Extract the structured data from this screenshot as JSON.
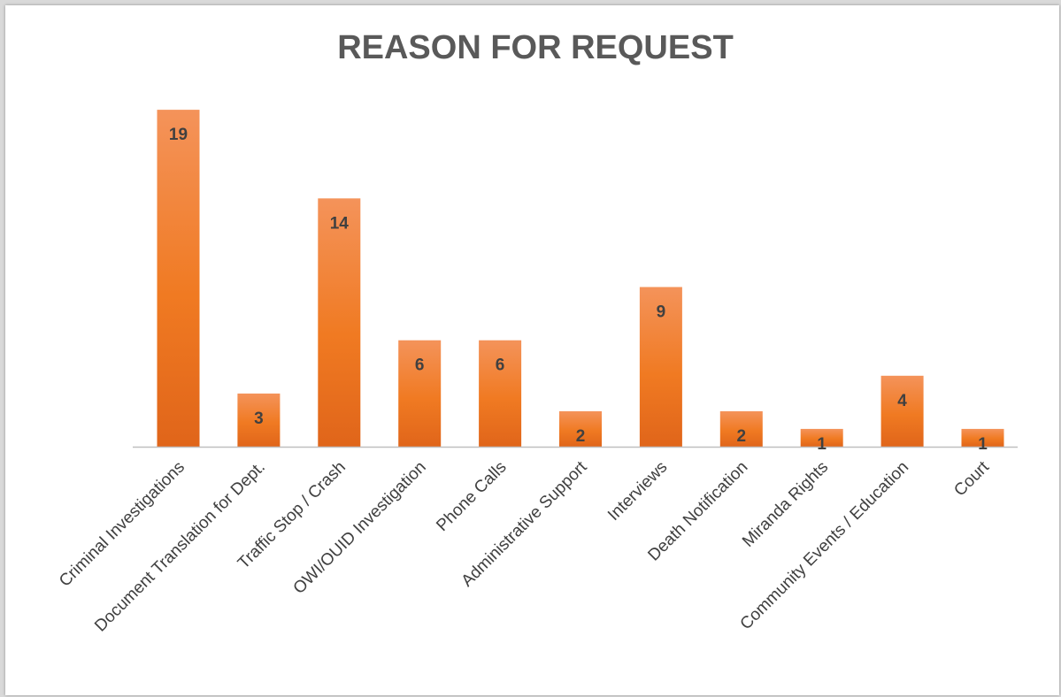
{
  "chart_data": {
    "type": "bar",
    "title": "REASON FOR REQUEST",
    "xlabel": "",
    "ylabel": "",
    "ylim": [
      0,
      20
    ],
    "grid": false,
    "legend": "none",
    "categories": [
      "Criminal Investigations",
      "Document Translation for Dept.",
      "Traffic Stop / Crash",
      "OWI/OUID Investigation",
      "Phone Calls",
      "Administrative Support",
      "Interviews",
      "Death Notification",
      "Miranda Rights",
      "Community Events / Education",
      "Court"
    ],
    "values": [
      19,
      3,
      14,
      6,
      6,
      2,
      9,
      2,
      1,
      4,
      1
    ],
    "colors": {
      "bar_top": "#f4935a",
      "bar_mid": "#f07a22",
      "bar_bottom": "#e0651a",
      "title": "#595959",
      "value_label": "#404040",
      "category_label": "#404040",
      "axis": "#bfbfbf"
    }
  }
}
